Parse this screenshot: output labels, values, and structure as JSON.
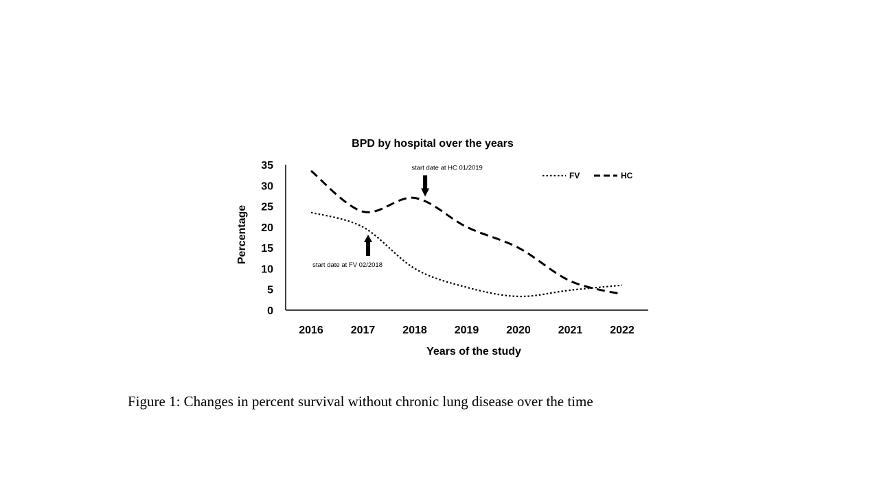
{
  "caption": "Figure 1: Changes in percent survival without chronic lung disease over the time",
  "chart_data": {
    "type": "line",
    "title": "BPD by hospital over the years",
    "xlabel": "Years of the study",
    "ylabel": "Percentage",
    "categories": [
      "2016",
      "2017",
      "2018",
      "2019",
      "2020",
      "2021",
      "2022"
    ],
    "ylim": [
      0,
      35
    ],
    "yticks": [
      0,
      5,
      10,
      15,
      20,
      25,
      30,
      35
    ],
    "grid": false,
    "smooth": true,
    "legend_position": "top-right",
    "series": [
      {
        "name": "FV",
        "values": [
          23.5,
          20,
          10,
          5.5,
          3.3,
          4.8,
          6
        ],
        "line_style": "dotted",
        "color": "#000000"
      },
      {
        "name": "HC",
        "values": [
          33.5,
          23.7,
          27,
          20,
          15,
          7,
          3.8
        ],
        "line_style": "dashed",
        "color": "#000000"
      }
    ],
    "annotations": [
      {
        "text": "start date at HC 01/2019",
        "x": 2018.2,
        "y": 27,
        "arrow": "down"
      },
      {
        "text": "start date at FV 02/2018",
        "x": 2017.1,
        "y": 18.5,
        "arrow": "up"
      }
    ]
  }
}
